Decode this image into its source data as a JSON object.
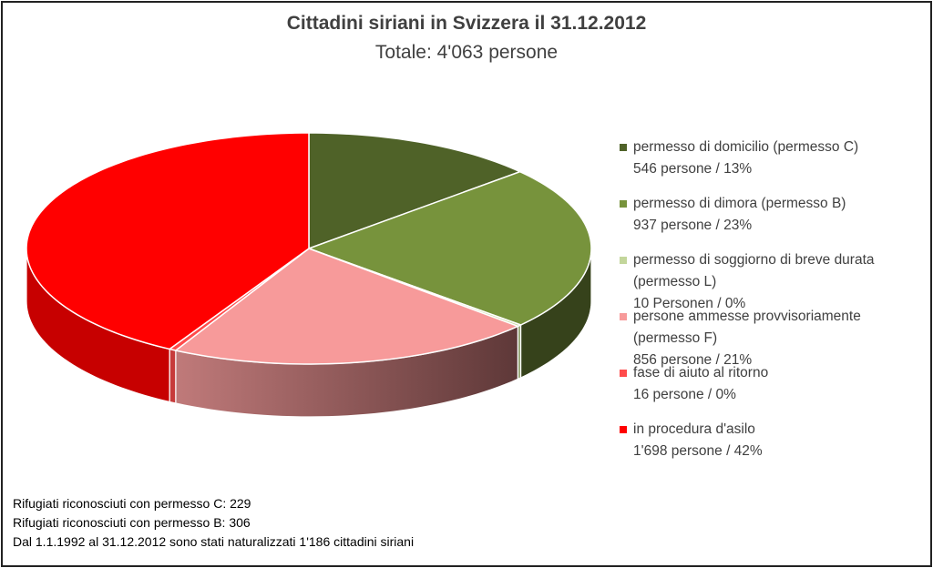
{
  "chart_data": {
    "type": "pie",
    "title": "Cittadini siriani in Svizzera il 31.12.2012",
    "subtitle": "Totale: 4'063 persone",
    "slices": [
      {
        "name": "permesso di domicilio (permesso C)",
        "value": 546,
        "label_line2": "546 persone / 13%",
        "color": "#4f6228"
      },
      {
        "name": "permesso di dimora (permesso B)",
        "value": 937,
        "label_line2": "937 persone / 23%",
        "color": "#77933c"
      },
      {
        "name": "permesso di soggiorno di breve durata (permesso L)",
        "value": 10,
        "label_line2": "10 Personen / 0%",
        "color": "#c3d69b"
      },
      {
        "name": "persone ammesse provvisoriamente (permesso F)",
        "value": 856,
        "label_line2": "856 persone / 21%",
        "color": "#f79a9a"
      },
      {
        "name": "fase di aiuto al ritorno",
        "value": 16,
        "label_line2": "16 persone / 0%",
        "color": "#ff4b4b"
      },
      {
        "name": "in procedura d'asilo",
        "value": 1698,
        "label_line2": "1'698 persone / 42%",
        "color": "#ff0000"
      }
    ],
    "legend_position": "right"
  },
  "notes": [
    "Rifugiati riconosciuti con permesso C: 229",
    "Rifugiati riconosciuti con permesso B: 306",
    "Dal 1.1.1992 al 31.12.2012 sono stati naturalizzati 1'186 cittadini siriani"
  ]
}
